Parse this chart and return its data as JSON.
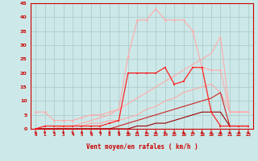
{
  "x": [
    0,
    1,
    2,
    3,
    4,
    5,
    6,
    7,
    8,
    9,
    10,
    11,
    12,
    13,
    14,
    15,
    16,
    17,
    18,
    19,
    20,
    21,
    22,
    23
  ],
  "line_pink_top": [
    6,
    6,
    3,
    3,
    3,
    4,
    5,
    5,
    6,
    7,
    26,
    39,
    39,
    43,
    39,
    39,
    39,
    35,
    22,
    21,
    21,
    6,
    6,
    6
  ],
  "line_pink_diag1": [
    0,
    0,
    0,
    1,
    1,
    2,
    3,
    4,
    5,
    7,
    9,
    11,
    13,
    15,
    17,
    19,
    21,
    23,
    25,
    27,
    33,
    6,
    6,
    6
  ],
  "line_pink_diag2": [
    0,
    0,
    0,
    0,
    1,
    1,
    2,
    2,
    3,
    3,
    4,
    5,
    7,
    8,
    10,
    11,
    13,
    14,
    15,
    16,
    13,
    6,
    6,
    6
  ],
  "line_bright_red_markers": [
    0,
    1,
    1,
    1,
    1,
    1,
    1,
    1,
    2,
    3,
    20,
    20,
    20,
    20,
    22,
    16,
    17,
    22,
    22,
    6,
    1,
    1,
    1,
    1
  ],
  "line_med_red": [
    0,
    0,
    0,
    0,
    0,
    0,
    0,
    0,
    0,
    1,
    2,
    3,
    4,
    5,
    6,
    7,
    8,
    9,
    10,
    11,
    13,
    1,
    1,
    1
  ],
  "line_dark_red": [
    0,
    0,
    0,
    0,
    0,
    0,
    0,
    0,
    0,
    0,
    0,
    1,
    1,
    2,
    2,
    3,
    4,
    5,
    6,
    6,
    6,
    1,
    1,
    1
  ],
  "xlabel": "Vent moyen/en rafales ( km/h )",
  "ylim": [
    0,
    45
  ],
  "xlim": [
    -0.5,
    23.5
  ],
  "yticks": [
    0,
    5,
    10,
    15,
    20,
    25,
    30,
    35,
    40,
    45
  ],
  "xticks": [
    0,
    1,
    2,
    3,
    4,
    5,
    6,
    7,
    8,
    9,
    10,
    11,
    12,
    13,
    14,
    15,
    16,
    17,
    18,
    19,
    20,
    21,
    22,
    23
  ],
  "bg_color": "#cde8e8",
  "grid_color": "#b0cccc",
  "color_light_pink": "#ffaaaa",
  "color_bright_red": "#ff2222",
  "color_med_red": "#cc2222",
  "color_dark_red": "#990000",
  "color_axis": "#cc0000"
}
